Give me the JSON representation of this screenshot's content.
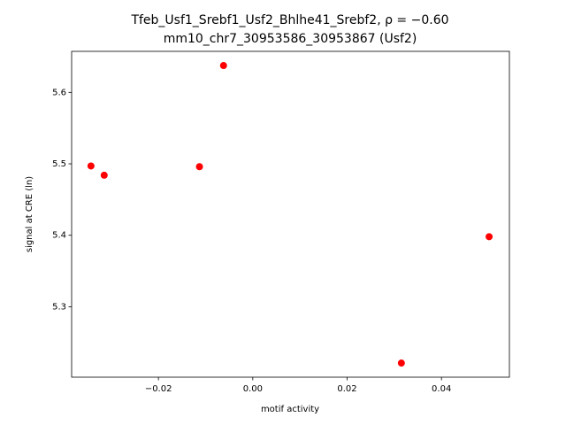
{
  "chart_data": {
    "type": "scatter",
    "title": "Tfeb_Usf1_Srebf1_Usf2_Bhlhe41_Srebf2, ρ = −0.60",
    "subtitle": "mm10_chr7_30953586_30953867 (Usf2)",
    "x_label": "motif activity",
    "y_label": "signal at CRE (ln)",
    "x": [
      -0.0343,
      -0.0315,
      -0.0113,
      -0.0062,
      0.0315,
      0.0501
    ],
    "values": [
      5.497,
      5.484,
      5.496,
      5.6375,
      5.2212,
      5.398
    ],
    "color": "#ff0000",
    "xlim": [
      -0.0384,
      0.0544
    ],
    "ylim": [
      5.2014,
      5.6574
    ],
    "xticks": [
      {
        "value": -0.02,
        "label": "−0.02"
      },
      {
        "value": 0,
        "label": "0.00"
      },
      {
        "value": 0.02,
        "label": "0.02"
      },
      {
        "value": 0.04,
        "label": "0.04"
      }
    ],
    "yticks": [
      5.3,
      5.4,
      5.5,
      5.6
    ],
    "grid": false
  }
}
